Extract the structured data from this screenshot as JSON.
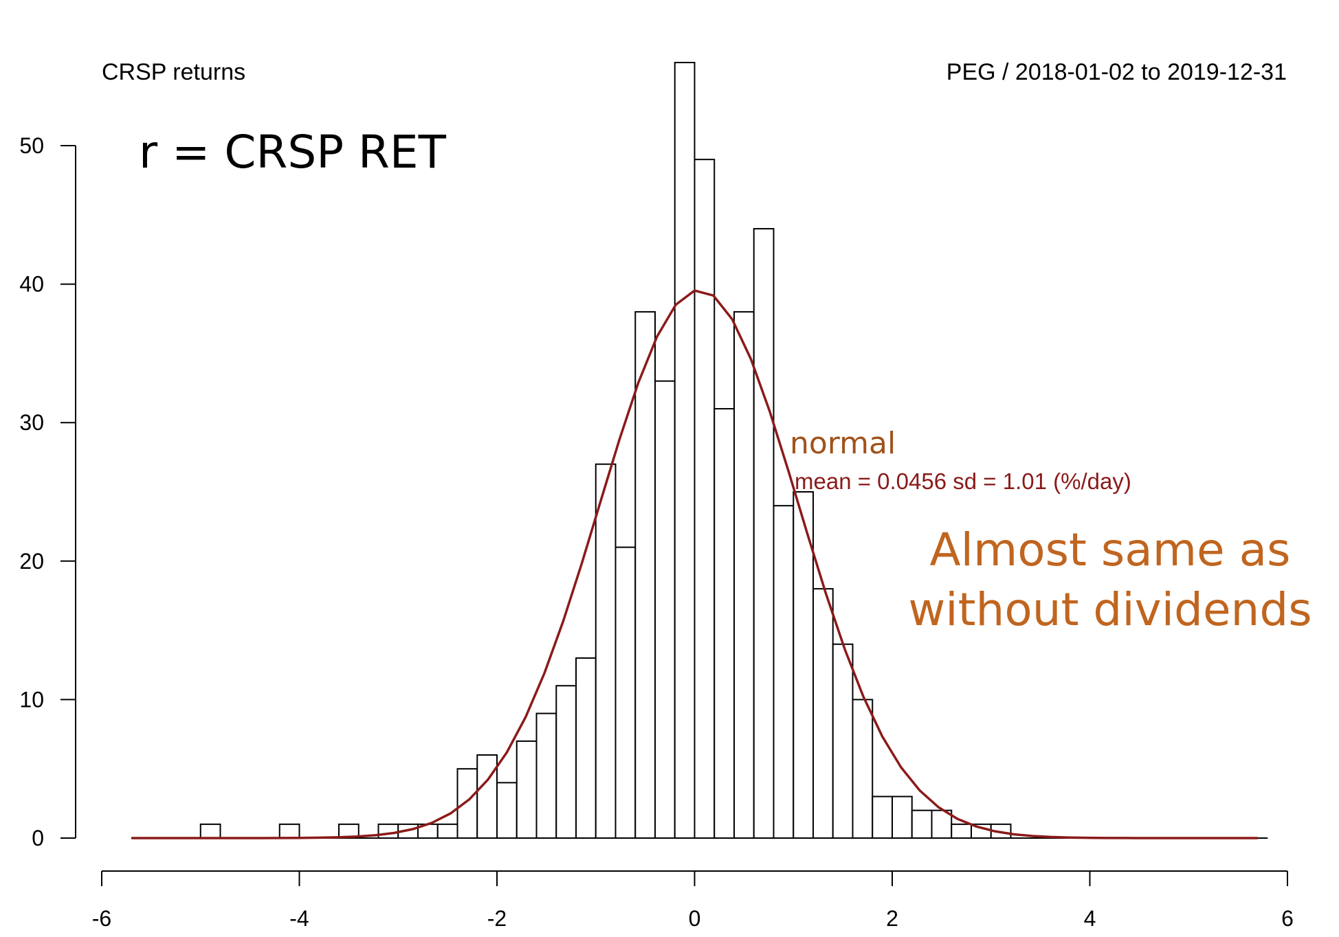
{
  "chart_data": {
    "type": "bar",
    "subtype": "histogram",
    "top_left_label": "CRSP returns",
    "top_right_label": "PEG / 2018-01-02 to 2019-12-31",
    "headline": "r = CRSP RET",
    "bin_width": 0.2,
    "bins": [
      {
        "x0": -5.0,
        "x1": -4.8,
        "count": 1
      },
      {
        "x0": -4.2,
        "x1": -4.0,
        "count": 1
      },
      {
        "x0": -3.6,
        "x1": -3.4,
        "count": 1
      },
      {
        "x0": -3.2,
        "x1": -3.0,
        "count": 1
      },
      {
        "x0": -3.0,
        "x1": -2.8,
        "count": 1
      },
      {
        "x0": -2.8,
        "x1": -2.6,
        "count": 1
      },
      {
        "x0": -2.6,
        "x1": -2.4,
        "count": 1
      },
      {
        "x0": -2.4,
        "x1": -2.2,
        "count": 5
      },
      {
        "x0": -2.2,
        "x1": -2.0,
        "count": 6
      },
      {
        "x0": -2.0,
        "x1": -1.8,
        "count": 4
      },
      {
        "x0": -1.8,
        "x1": -1.6,
        "count": 7
      },
      {
        "x0": -1.6,
        "x1": -1.4,
        "count": 9
      },
      {
        "x0": -1.4,
        "x1": -1.2,
        "count": 11
      },
      {
        "x0": -1.2,
        "x1": -1.0,
        "count": 13
      },
      {
        "x0": -1.0,
        "x1": -0.8,
        "count": 27
      },
      {
        "x0": -0.8,
        "x1": -0.6,
        "count": 21
      },
      {
        "x0": -0.6,
        "x1": -0.4,
        "count": 38
      },
      {
        "x0": -0.4,
        "x1": -0.2,
        "count": 33
      },
      {
        "x0": -0.2,
        "x1": 0.0,
        "count": 56
      },
      {
        "x0": 0.0,
        "x1": 0.2,
        "count": 49
      },
      {
        "x0": 0.2,
        "x1": 0.4,
        "count": 31
      },
      {
        "x0": 0.4,
        "x1": 0.6,
        "count": 38
      },
      {
        "x0": 0.6,
        "x1": 0.8,
        "count": 44
      },
      {
        "x0": 0.8,
        "x1": 1.0,
        "count": 24
      },
      {
        "x0": 1.0,
        "x1": 1.2,
        "count": 25
      },
      {
        "x0": 1.2,
        "x1": 1.4,
        "count": 18
      },
      {
        "x0": 1.4,
        "x1": 1.6,
        "count": 14
      },
      {
        "x0": 1.6,
        "x1": 1.8,
        "count": 10
      },
      {
        "x0": 1.8,
        "x1": 2.0,
        "count": 3
      },
      {
        "x0": 2.0,
        "x1": 2.2,
        "count": 3
      },
      {
        "x0": 2.2,
        "x1": 2.4,
        "count": 2
      },
      {
        "x0": 2.4,
        "x1": 2.6,
        "count": 2
      },
      {
        "x0": 2.6,
        "x1": 2.8,
        "count": 1
      },
      {
        "x0": 2.8,
        "x1": 3.0,
        "count": 1
      },
      {
        "x0": 3.0,
        "x1": 3.2,
        "count": 1
      }
    ],
    "xlim": [
      -6,
      6
    ],
    "ylim": [
      0,
      56
    ],
    "x_ticks": [
      -6,
      -4,
      -2,
      0,
      2,
      4,
      6
    ],
    "y_ticks": [
      0,
      10,
      20,
      30,
      40,
      50
    ],
    "normal_curve": {
      "label": "normal",
      "stats_label": "mean = 0.0456  sd = 1.01 (%/day)",
      "mean": 0.0456,
      "sd": 1.01,
      "n": 501,
      "x_range": [
        -5.7,
        5.7
      ],
      "color": "#8b1a1a"
    },
    "annotation": {
      "lines": [
        "Almost same as",
        "without dividends"
      ],
      "color": "#c0651f"
    },
    "normal_label_color": "#a0521b",
    "bar_fill": "#ffffff",
    "bar_stroke": "#000000",
    "grid": false
  }
}
